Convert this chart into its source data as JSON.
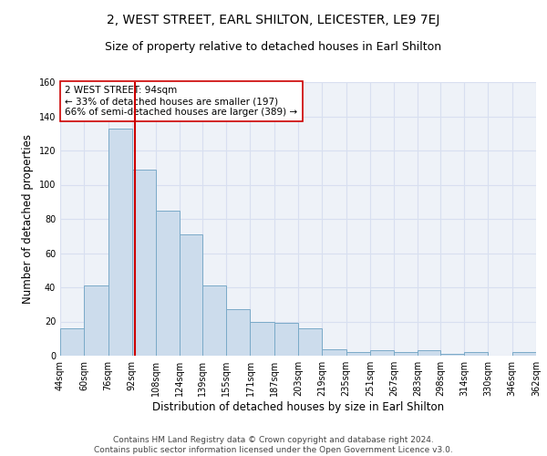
{
  "title": "2, WEST STREET, EARL SHILTON, LEICESTER, LE9 7EJ",
  "subtitle": "Size of property relative to detached houses in Earl Shilton",
  "xlabel": "Distribution of detached houses by size in Earl Shilton",
  "ylabel": "Number of detached properties",
  "bin_edges": [
    44,
    60,
    76,
    92,
    108,
    124,
    139,
    155,
    171,
    187,
    203,
    219,
    235,
    251,
    267,
    283,
    298,
    314,
    330,
    346,
    362
  ],
  "bar_heights": [
    16,
    41,
    133,
    109,
    85,
    71,
    41,
    27,
    20,
    19,
    16,
    4,
    2,
    3,
    2,
    3,
    1,
    2,
    0,
    2
  ],
  "bar_color": "#ccdcec",
  "bar_edgecolor": "#7aaac8",
  "property_size": 94,
  "red_line_color": "#cc0000",
  "annotation_text": "2 WEST STREET: 94sqm\n← 33% of detached houses are smaller (197)\n66% of semi-detached houses are larger (389) →",
  "annotation_box_color": "#ffffff",
  "annotation_box_edgecolor": "#cc0000",
  "ylim": [
    0,
    160
  ],
  "yticks": [
    0,
    20,
    40,
    60,
    80,
    100,
    120,
    140,
    160
  ],
  "grid_color": "#d8dff0",
  "background_color": "#eef2f8",
  "footer_text": "Contains HM Land Registry data © Crown copyright and database right 2024.\nContains public sector information licensed under the Open Government Licence v3.0.",
  "title_fontsize": 10,
  "subtitle_fontsize": 9,
  "xlabel_fontsize": 8.5,
  "ylabel_fontsize": 8.5,
  "tick_fontsize": 7,
  "annotation_fontsize": 7.5,
  "footer_fontsize": 6.5
}
